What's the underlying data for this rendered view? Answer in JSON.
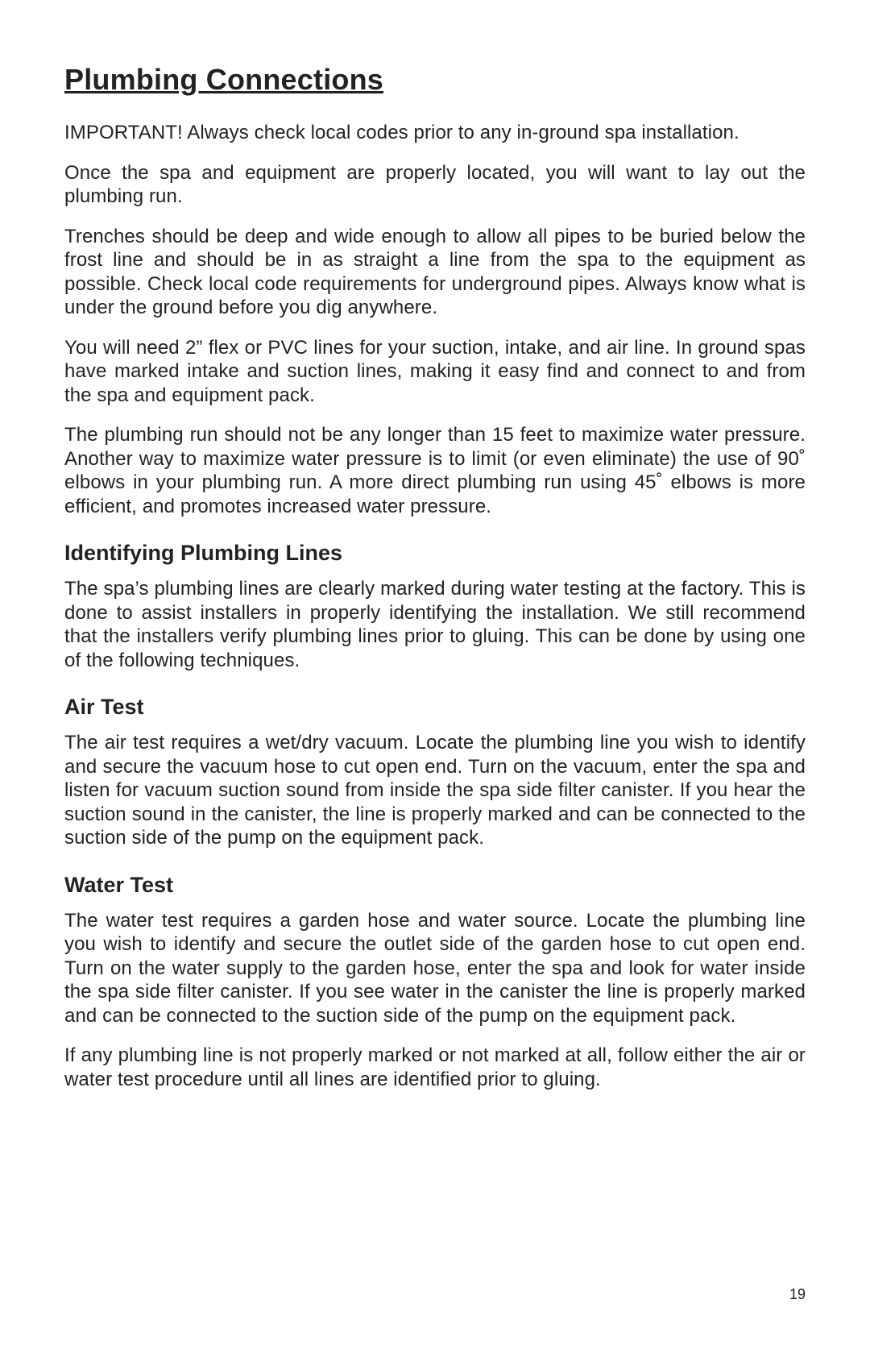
{
  "title": "Plumbing Connections",
  "paragraphs": {
    "p1": "IMPORTANT! Always check local codes prior to any in-ground spa installation.",
    "p2": "Once the spa and equipment are properly located, you will want to lay out the plumbing run.",
    "p3": "Trenches should be deep and wide enough to allow all pipes to be buried below the frost line and should be in as straight a line from the spa to the equipment as possible. Check local code requirements for underground pipes. Always know what is under the ground before you dig anywhere.",
    "p4": "You will need 2” flex or PVC lines for your suction, intake, and air line. In ground spas have marked intake and suction lines, making it easy find and connect to and from the spa and equipment pack.",
    "p5": "The plumbing run should not be any longer than 15 feet to maximize water pressure. Another way to maximize water pressure is to limit (or even eliminate) the use of 90˚ elbows in your plumbing run. A more direct plumbing run using 45˚ elbows is more efficient, and promotes increased water pressure."
  },
  "sections": {
    "identifying": {
      "heading": "Identifying Plumbing Lines",
      "p1": "The spa’s plumbing lines are clearly marked during water testing at the factory. This is done to assist installers in properly identifying the installation. We still recommend that the installers verify plumbing lines prior to gluing. This can be done by using one of the following techniques."
    },
    "air_test": {
      "heading": "Air Test",
      "p1": "The air test requires a wet/dry vacuum. Locate the plumbing line you wish to identify and secure the vacuum hose to cut open end. Turn on the vacuum, enter the spa and listen for vacuum suction sound from inside the spa side filter canister. If you hear the suction sound in the canister, the line is properly marked and can be connected to the suction side of the pump on the equipment pack."
    },
    "water_test": {
      "heading": "Water Test",
      "p1": "The water test requires a garden hose and water source. Locate the plumbing line you wish to identify and secure the outlet side of the garden hose to cut open end. Turn on the water supply to the garden hose, enter the spa and look for water inside the spa side filter canister. If you see water in the canister the line is properly marked and can be connected to the suction side of the pump on the equipment pack.",
      "p2": "If any plumbing line is not properly marked or not marked at all, follow either the air or water test procedure until all lines are identified prior to gluing."
    }
  },
  "page_number": "19",
  "style": {
    "background_color": "#ffffff",
    "text_color": "#222222",
    "title_fontsize": 36,
    "body_fontsize": 24,
    "subhead_fontsize": 27,
    "page_number_fontsize": 18,
    "font_family": "Arial"
  }
}
